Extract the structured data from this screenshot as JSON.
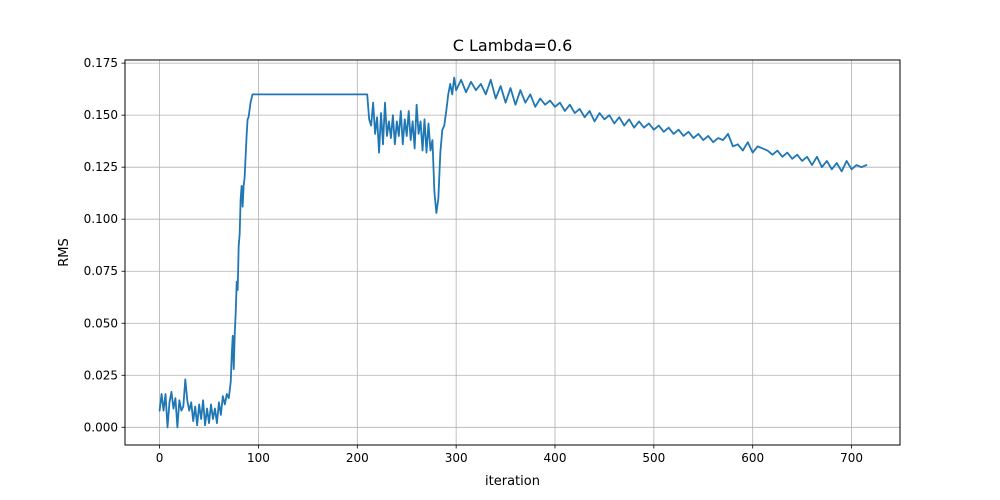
{
  "chart_data": {
    "type": "line",
    "title": "C Lambda=0.6",
    "xlabel": "iteration",
    "ylabel": "RMS",
    "xlim": [
      -35,
      749
    ],
    "ylim": [
      -0.0085,
      0.1765
    ],
    "xticks": [
      0,
      100,
      200,
      300,
      400,
      500,
      600,
      700
    ],
    "yticks": [
      0.0,
      0.025,
      0.05,
      0.075,
      0.1,
      0.125,
      0.15,
      0.175
    ],
    "xtick_labels": [
      "0",
      "100",
      "200",
      "300",
      "400",
      "500",
      "600",
      "700"
    ],
    "ytick_labels": [
      "0.000",
      "0.025",
      "0.050",
      "0.075",
      "0.100",
      "0.125",
      "0.150",
      "0.175"
    ],
    "grid": true,
    "line_color": "#1f77b4",
    "series": [
      {
        "x": [
          0,
          2,
          4,
          6,
          8,
          10,
          12,
          14,
          16,
          18,
          20,
          22,
          24,
          26,
          28,
          30,
          32,
          34,
          36,
          38,
          40,
          42,
          44,
          46,
          48,
          50,
          52,
          54,
          56,
          58,
          60,
          62,
          64,
          66,
          68,
          70,
          72,
          73,
          74,
          75,
          76,
          77,
          78,
          79,
          80,
          81,
          82,
          83,
          84,
          85,
          86,
          87,
          88,
          89,
          90,
          92,
          94,
          96,
          98,
          100,
          210,
          212,
          214,
          216,
          218,
          220,
          222,
          224,
          226,
          228,
          230,
          232,
          234,
          236,
          238,
          240,
          242,
          244,
          246,
          248,
          250,
          252,
          254,
          256,
          258,
          260,
          262,
          264,
          266,
          268,
          270,
          272,
          274,
          276,
          278,
          280,
          282,
          284,
          286,
          288,
          290,
          292,
          294,
          296,
          298,
          300,
          305,
          310,
          315,
          320,
          325,
          330,
          335,
          340,
          345,
          350,
          355,
          360,
          365,
          370,
          375,
          380,
          385,
          390,
          395,
          400,
          405,
          410,
          415,
          420,
          425,
          430,
          435,
          440,
          445,
          450,
          455,
          460,
          465,
          470,
          475,
          480,
          485,
          490,
          495,
          500,
          505,
          510,
          515,
          520,
          525,
          530,
          535,
          540,
          545,
          550,
          555,
          560,
          565,
          570,
          575,
          580,
          585,
          590,
          595,
          600,
          605,
          610,
          615,
          620,
          625,
          630,
          635,
          640,
          645,
          650,
          655,
          660,
          665,
          670,
          675,
          680,
          685,
          690,
          695,
          700,
          705,
          710,
          715
        ],
        "values": [
          0.008,
          0.016,
          0.008,
          0.016,
          0.0,
          0.012,
          0.017,
          0.009,
          0.014,
          0.0,
          0.013,
          0.008,
          0.01,
          0.023,
          0.013,
          0.008,
          0.012,
          0.003,
          0.01,
          0.001,
          0.011,
          0.004,
          0.013,
          0.001,
          0.009,
          0.002,
          0.011,
          0.004,
          0.009,
          0.002,
          0.012,
          0.006,
          0.015,
          0.011,
          0.016,
          0.014,
          0.022,
          0.035,
          0.044,
          0.028,
          0.045,
          0.055,
          0.07,
          0.066,
          0.087,
          0.093,
          0.11,
          0.116,
          0.106,
          0.116,
          0.12,
          0.13,
          0.14,
          0.148,
          0.149,
          0.156,
          0.16,
          0.16,
          0.16,
          0.16,
          0.16,
          0.148,
          0.145,
          0.156,
          0.141,
          0.149,
          0.132,
          0.151,
          0.136,
          0.156,
          0.14,
          0.147,
          0.139,
          0.15,
          0.136,
          0.147,
          0.14,
          0.152,
          0.136,
          0.148,
          0.14,
          0.152,
          0.138,
          0.147,
          0.134,
          0.155,
          0.141,
          0.147,
          0.133,
          0.148,
          0.132,
          0.146,
          0.133,
          0.138,
          0.113,
          0.103,
          0.11,
          0.132,
          0.143,
          0.145,
          0.152,
          0.16,
          0.165,
          0.16,
          0.168,
          0.162,
          0.167,
          0.161,
          0.166,
          0.162,
          0.165,
          0.16,
          0.167,
          0.158,
          0.164,
          0.156,
          0.163,
          0.155,
          0.162,
          0.156,
          0.16,
          0.154,
          0.158,
          0.155,
          0.157,
          0.154,
          0.156,
          0.152,
          0.155,
          0.151,
          0.153,
          0.149,
          0.152,
          0.147,
          0.151,
          0.148,
          0.15,
          0.146,
          0.149,
          0.145,
          0.148,
          0.144,
          0.147,
          0.144,
          0.146,
          0.143,
          0.145,
          0.142,
          0.144,
          0.141,
          0.143,
          0.14,
          0.142,
          0.139,
          0.141,
          0.138,
          0.14,
          0.137,
          0.139,
          0.138,
          0.141,
          0.135,
          0.136,
          0.133,
          0.137,
          0.132,
          0.135,
          0.134,
          0.133,
          0.131,
          0.133,
          0.13,
          0.132,
          0.129,
          0.131,
          0.128,
          0.13,
          0.126,
          0.13,
          0.125,
          0.128,
          0.124,
          0.127,
          0.123,
          0.128,
          0.124,
          0.126,
          0.125,
          0.126
        ]
      }
    ]
  }
}
